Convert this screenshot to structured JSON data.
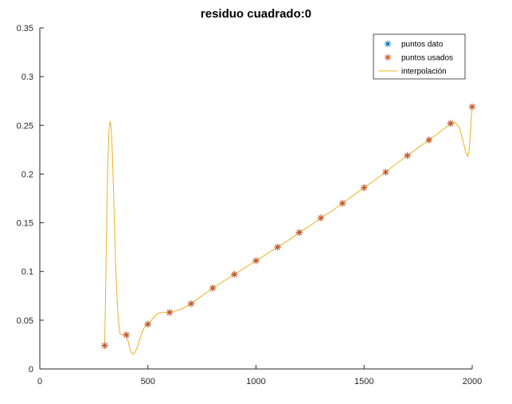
{
  "chart_data": {
    "type": "scatter",
    "title": "residuo cuadrado:0",
    "xlabel": "",
    "ylabel": "",
    "xlim": [
      0,
      2000
    ],
    "ylim": [
      0,
      0.35
    ],
    "xticks": [
      0,
      500,
      1000,
      1500,
      2000
    ],
    "yticks": [
      0,
      0.05,
      0.1,
      0.15,
      0.2,
      0.25,
      0.3,
      0.35
    ],
    "xtick_labels": [
      "0",
      "500",
      "1000",
      "1500",
      "2000"
    ],
    "ytick_labels": [
      "0",
      "0.05",
      "0.1",
      "0.15",
      "0.2",
      "0.25",
      "0.3",
      "0.35"
    ],
    "grid": false,
    "legend_position": "top-right",
    "series": [
      {
        "name": "puntos dato",
        "kind": "marker",
        "marker": "asterisk",
        "color": "#0072bd",
        "x": [
          300,
          400,
          500,
          600,
          700,
          800,
          900,
          1000,
          1100,
          1200,
          1300,
          1400,
          1500,
          1600,
          1700,
          1800,
          1900,
          2000
        ],
        "y": [
          0.024,
          0.035,
          0.046,
          0.058,
          0.067,
          0.083,
          0.097,
          0.111,
          0.125,
          0.14,
          0.155,
          0.17,
          0.186,
          0.202,
          0.219,
          0.235,
          0.252,
          0.269
        ]
      },
      {
        "name": "puntos usados",
        "kind": "marker",
        "marker": "asterisk",
        "color": "#d95319",
        "x": [
          300,
          400,
          500,
          600,
          700,
          800,
          900,
          1000,
          1100,
          1200,
          1300,
          1400,
          1500,
          1600,
          1700,
          1800,
          1900,
          2000
        ],
        "y": [
          0.024,
          0.035,
          0.046,
          0.058,
          0.067,
          0.083,
          0.097,
          0.111,
          0.125,
          0.14,
          0.155,
          0.17,
          0.186,
          0.202,
          0.219,
          0.235,
          0.252,
          0.269
        ]
      },
      {
        "name": "interpolación",
        "kind": "line",
        "color": "#edb120",
        "x": [
          300,
          305,
          310,
          315,
          320,
          325,
          330,
          335,
          340,
          345,
          350,
          360,
          370,
          380,
          390,
          400,
          410,
          420,
          430,
          440,
          450,
          460,
          470,
          480,
          490,
          500,
          520,
          540,
          560,
          580,
          600,
          650,
          700,
          750,
          800,
          850,
          900,
          950,
          1000,
          1050,
          1100,
          1150,
          1200,
          1250,
          1300,
          1350,
          1400,
          1450,
          1500,
          1550,
          1600,
          1650,
          1700,
          1750,
          1800,
          1850,
          1900,
          1920,
          1940,
          1960,
          1970,
          1980,
          1985,
          1990,
          1995,
          2000
        ],
        "y": [
          0.024,
          0.09,
          0.16,
          0.215,
          0.245,
          0.254,
          0.248,
          0.225,
          0.19,
          0.15,
          0.11,
          0.06,
          0.036,
          0.035,
          0.035,
          0.035,
          0.027,
          0.018,
          0.015,
          0.017,
          0.022,
          0.029,
          0.036,
          0.041,
          0.045,
          0.046,
          0.051,
          0.056,
          0.058,
          0.058,
          0.058,
          0.061,
          0.067,
          0.075,
          0.083,
          0.09,
          0.097,
          0.104,
          0.111,
          0.118,
          0.125,
          0.132,
          0.14,
          0.147,
          0.155,
          0.162,
          0.17,
          0.178,
          0.186,
          0.194,
          0.202,
          0.211,
          0.219,
          0.227,
          0.235,
          0.243,
          0.252,
          0.253,
          0.248,
          0.232,
          0.222,
          0.218,
          0.223,
          0.237,
          0.255,
          0.269
        ]
      }
    ]
  }
}
